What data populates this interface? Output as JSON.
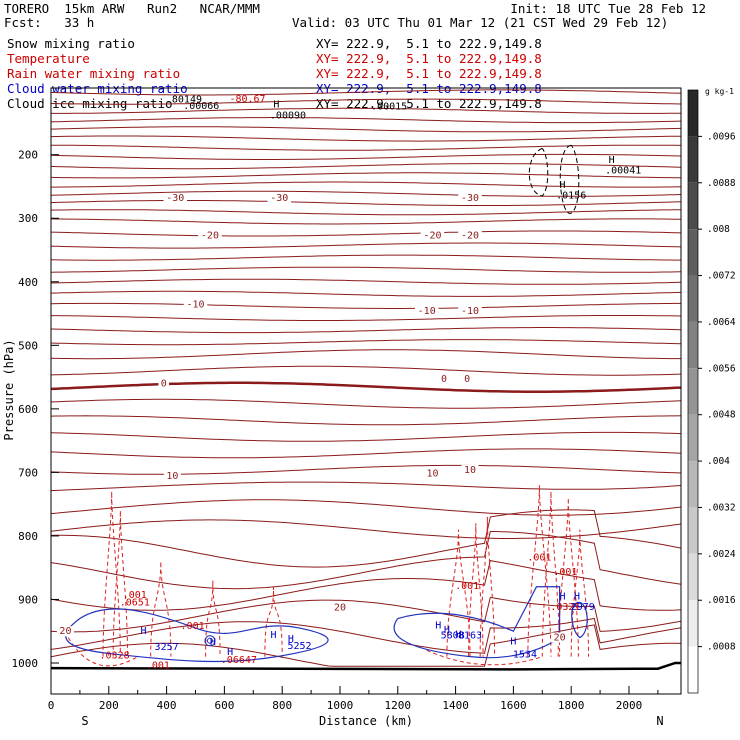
{
  "header": {
    "left1": "TORERO  15km ARW   Run2   NCAR/MMM",
    "right1": "Init: 18 UTC Tue 28 Feb 12",
    "left2": "Fcst:   33 h",
    "right2": "Valid: 03 UTC Thu 01 Mar 12 (21 CST Wed 29 Feb 12)",
    "fields": [
      {
        "name": "Snow mixing ratio",
        "xy": "XY= 222.9,  5.1 to 222.9,149.8",
        "color": "#000000"
      },
      {
        "name": "Temperature",
        "xy": "XY= 222.9,  5.1 to 222.9,149.8",
        "color": "#cc0000"
      },
      {
        "name": "Rain water mixing ratio",
        "xy": "XY= 222.9,  5.1 to 222.9,149.8",
        "color": "#cc0000"
      },
      {
        "name": "Cloud water mixing ratio",
        "xy": "XY= 222.9,  5.1 to 222.9,149.8",
        "color": "#0000cc"
      },
      {
        "name": "Cloud ice mixing ratio",
        "xy": "XY= 222.9,  5.1 to 222.9,149.8",
        "color": "#000000"
      }
    ]
  },
  "chart_data": {
    "type": "contour",
    "xlabel": "Distance (km)",
    "ylabel": "Pressure (hPa)",
    "xlim": [
      0,
      2180
    ],
    "ylim": [
      1050,
      100
    ],
    "x_ticks": [
      0,
      200,
      400,
      600,
      800,
      1000,
      1200,
      1400,
      1600,
      1800,
      2000
    ],
    "y_ticks": [
      200,
      300,
      400,
      500,
      600,
      700,
      800,
      900,
      1000
    ],
    "x_end_labels": {
      "left": "S",
      "right": "N"
    },
    "colors": {
      "temperature": "#8b1a1a",
      "rain": "#dd2222",
      "cloud_water": "#2233bb",
      "ice": "#000000",
      "label_blue": "#0000cc",
      "label_red": "#cc0000"
    },
    "temperature_labels": [
      {
        "text": "-30",
        "x": 430,
        "p": 268
      },
      {
        "text": "-30",
        "x": 790,
        "p": 268
      },
      {
        "text": "-30",
        "x": 1450,
        "p": 268
      },
      {
        "text": "-20",
        "x": 550,
        "p": 327
      },
      {
        "text": "-20",
        "x": 1320,
        "p": 327
      },
      {
        "text": "-20",
        "x": 1450,
        "p": 327
      },
      {
        "text": "-10",
        "x": 500,
        "p": 436
      },
      {
        "text": "-10",
        "x": 1300,
        "p": 446
      },
      {
        "text": "-10",
        "x": 1450,
        "p": 446
      },
      {
        "text": "0",
        "x": 390,
        "p": 560
      },
      {
        "text": "0",
        "x": 1360,
        "p": 553
      },
      {
        "text": "0",
        "x": 1440,
        "p": 553
      },
      {
        "text": "10",
        "x": 420,
        "p": 706
      },
      {
        "text": "10",
        "x": 1320,
        "p": 702
      },
      {
        "text": "10",
        "x": 1450,
        "p": 696
      },
      {
        "text": "20",
        "x": 1000,
        "p": 913
      },
      {
        "text": "20",
        "x": 50,
        "p": 950
      },
      {
        "text": "20",
        "x": 1760,
        "p": 960
      }
    ],
    "top_labels": [
      {
        "text": ".80149",
        "x": 460,
        "p": 113,
        "color": "#000000"
      },
      {
        "text": ".00066",
        "x": 520,
        "p": 123,
        "color": "#000000"
      },
      {
        "text": "-80.67",
        "x": 680,
        "p": 112,
        "color": "#cc0000"
      },
      {
        "text": "H",
        "x": 780,
        "p": 121,
        "color": "#000000"
      },
      {
        "text": ".00090",
        "x": 820,
        "p": 138,
        "color": "#000000"
      },
      {
        "text": ".00015",
        "x": 1170,
        "p": 124,
        "color": "#000000"
      },
      {
        "text": "H",
        "x": 1940,
        "p": 208,
        "color": "#000000"
      },
      {
        "text": ".00041",
        "x": 1980,
        "p": 225,
        "color": "#000000"
      },
      {
        "text": "H",
        "x": 1770,
        "p": 248,
        "color": "#000000"
      },
      {
        "text": ".0156",
        "x": 1800,
        "p": 264,
        "color": "#000000"
      }
    ],
    "rain_labels": [
      {
        "text": ".001",
        "x": 290,
        "p": 893
      },
      {
        "text": ".001",
        "x": 490,
        "p": 942
      },
      {
        "text": ".001",
        "x": 370,
        "p": 1004
      },
      {
        "text": ".001",
        "x": 1440,
        "p": 879
      },
      {
        "text": ".001",
        "x": 1690,
        "p": 834
      },
      {
        "text": ".001",
        "x": 1780,
        "p": 857
      },
      {
        "text": ".0328",
        "x": 220,
        "p": 988
      },
      {
        "text": ".0651",
        "x": 290,
        "p": 905
      },
      {
        "text": ".06647",
        "x": 650,
        "p": 995
      },
      {
        "text": ".0321",
        "x": 1780,
        "p": 912
      }
    ],
    "cloud_labels": [
      {
        "text": "H",
        "x": 320,
        "p": 950
      },
      {
        "text": "3257",
        "x": 400,
        "p": 975
      },
      {
        "text": "H",
        "x": 560,
        "p": 967
      },
      {
        "text": "H",
        "x": 620,
        "p": 983
      },
      {
        "text": "H",
        "x": 770,
        "p": 956
      },
      {
        "text": "H",
        "x": 830,
        "p": 962
      },
      {
        "text": "5252",
        "x": 860,
        "p": 973
      },
      {
        "text": "H",
        "x": 1340,
        "p": 941
      },
      {
        "text": "H",
        "x": 1370,
        "p": 948
      },
      {
        "text": "5808",
        "x": 1390,
        "p": 957
      },
      {
        "text": "H",
        "x": 1410,
        "p": 955
      },
      {
        "text": "8163",
        "x": 1450,
        "p": 957
      },
      {
        "text": "H",
        "x": 1600,
        "p": 966
      },
      {
        "text": "1534",
        "x": 1640,
        "p": 987
      },
      {
        "text": "H",
        "x": 1770,
        "p": 895
      },
      {
        "text": "H",
        "x": 1820,
        "p": 895
      },
      {
        "text": "2979",
        "x": 1840,
        "p": 912
      }
    ],
    "colorbar": {
      "unit": "g kg-1",
      "levels": [
        ".0096",
        ".0088",
        ".008",
        ".0072",
        ".0064",
        ".0056",
        ".0048",
        ".004",
        ".0032",
        ".0024",
        ".0016",
        ".0008"
      ]
    }
  }
}
